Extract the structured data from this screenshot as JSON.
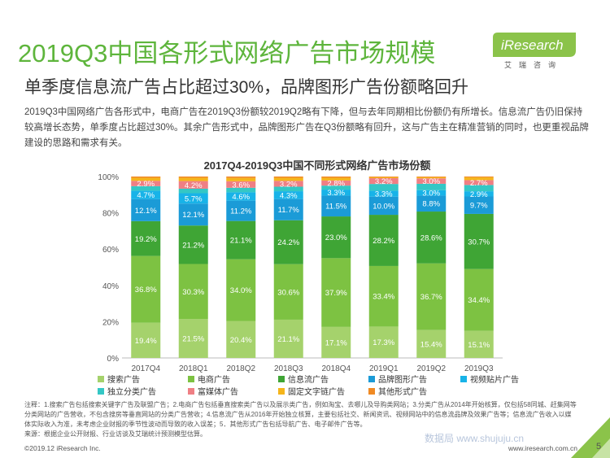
{
  "page": {
    "title": "2019Q3中国各形式网络广告市场规模",
    "subtitle": "单季度信息流广告占比超过30%，品牌图形广告份额略回升",
    "intro": "2019Q3中国网络广告各形式中，电商广告在2019Q3份额较2019Q2略有下降，但与去年同期相比份额仍有所增长。信息流广告仍旧保持较高增长态势，单季度占比超过30%。其余广告形式中，品牌图形广告在Q3份额略有回升，这与广告主在精准营销的同时，也更重视品牌建设的思路和需求有关。",
    "logo_text": "iResearch",
    "logo_sub": "艾瑞咨询",
    "footnote": "注释：1.搜索广告包括搜索关键字广告及联盟广告；2.电商广告包括垂直搜索类广告以及展示类广告，例如淘宝、去哪儿及导购类网站；3.分类广告从2014年开始核算，仅包括58同城、赶集网等分类网站的广告营收，不包含搜房等垂直网站的分类广告营收；4.信息流广告从2016年开始独立核算，主要包括社交、新闻资讯、视频网站中的信息流品牌及效果广告等；信息流广告收入以媒体实际收入为准，未考虑企业财报的季节性波动而导致的收入误差；5．其他形式广告包括导航广告、电子邮件广告等。",
    "source": "来源：根据企业公开财报、行业访谈及艾瑞统计预测模型估算。",
    "copyright": "©2019.12 iResearch Inc.",
    "website": "www.iresearch.com.cn",
    "watermark": "数据局 www.shujuju.cn",
    "page_number": "5",
    "colors": {
      "brand_green": "#5eb53c",
      "logo_bg": "#8bc34a"
    }
  },
  "chart_data": {
    "type": "bar",
    "stacked": true,
    "percent": true,
    "title": "2017Q4-2019Q3中国不同形式网络广告市场份额",
    "categories": [
      "2017Q4",
      "2018Q1",
      "2018Q2",
      "2018Q3",
      "2018Q4",
      "2019Q1",
      "2019Q2",
      "2019Q3"
    ],
    "y_ticks": [
      "0%",
      "20%",
      "40%",
      "60%",
      "80%",
      "100%"
    ],
    "ylim": [
      0,
      100
    ],
    "grid": false,
    "legend_position": "bottom",
    "series": [
      {
        "name": "搜索广告",
        "color": "#a5d26c",
        "labels": [
          "19.4%",
          "21.5%",
          "20.4%",
          "21.1%",
          "17.1%",
          "17.3%",
          "15.4%",
          "15.1%"
        ]
      },
      {
        "name": "电商广告",
        "color": "#7dc242",
        "labels": [
          "36.8%",
          "30.3%",
          "34.0%",
          "30.6%",
          "37.9%",
          "33.4%",
          "36.7%",
          "34.4%"
        ]
      },
      {
        "name": "信息流广告",
        "color": "#3fa535",
        "labels": [
          "19.2%",
          "21.2%",
          "21.1%",
          "24.2%",
          "23.0%",
          "28.2%",
          "28.6%",
          "30.7%"
        ]
      },
      {
        "name": "品牌图形广告",
        "color": "#1b9bd7",
        "labels": [
          "12.1%",
          "12.1%",
          "11.2%",
          "11.7%",
          "11.5%",
          "10.0%",
          "8.8%",
          "9.7%"
        ]
      },
      {
        "name": "视频贴片广告",
        "color": "#18b3e8",
        "labels": [
          "4.7%",
          "5.7%",
          "4.6%",
          "4.3%",
          "3.3%",
          "3.3%",
          "3.0%",
          "2.9%"
        ]
      },
      {
        "name": "独立分类广告",
        "color": "#34c7c5",
        "labels": [
          "",
          "",
          "",
          "",
          "",
          "",
          "",
          ""
        ]
      },
      {
        "name": "富媒体广告",
        "color": "#ef7f84",
        "labels": [
          "2.9%",
          "4.2%",
          "3.6%",
          "3.2%",
          "2.8%",
          "3.2%",
          "3.0%",
          "2.7%"
        ]
      },
      {
        "name": "固定文字链广告",
        "color": "#f5b51b",
        "labels": [
          "",
          "",
          "",
          "",
          "",
          "",
          "",
          ""
        ]
      },
      {
        "name": "其他形式广告",
        "color": "#f08a24",
        "labels": [
          "",
          "",
          "",
          "",
          "",
          "",
          "",
          ""
        ]
      }
    ],
    "values": [
      [
        19.4,
        36.8,
        19.2,
        12.1,
        4.7,
        2.5,
        2.9,
        1.7,
        0.7
      ],
      [
        21.5,
        30.3,
        21.2,
        12.1,
        5.7,
        2.5,
        4.2,
        1.8,
        0.7
      ],
      [
        20.4,
        34.0,
        21.1,
        11.2,
        4.6,
        2.5,
        3.6,
        1.8,
        0.8
      ],
      [
        21.1,
        30.6,
        24.2,
        11.7,
        4.3,
        2.5,
        3.2,
        1.7,
        0.7
      ],
      [
        17.1,
        37.9,
        23.0,
        11.5,
        3.3,
        2.2,
        2.8,
        1.5,
        0.7
      ],
      [
        17.3,
        33.4,
        28.2,
        10.0,
        3.3,
        3.7,
        3.2,
        0.5,
        0.4
      ],
      [
        15.4,
        36.7,
        28.6,
        8.8,
        3.0,
        3.5,
        3.0,
        0.6,
        0.4
      ],
      [
        15.1,
        34.4,
        30.7,
        9.7,
        2.9,
        3.5,
        2.7,
        1.5,
        0.5
      ]
    ]
  }
}
